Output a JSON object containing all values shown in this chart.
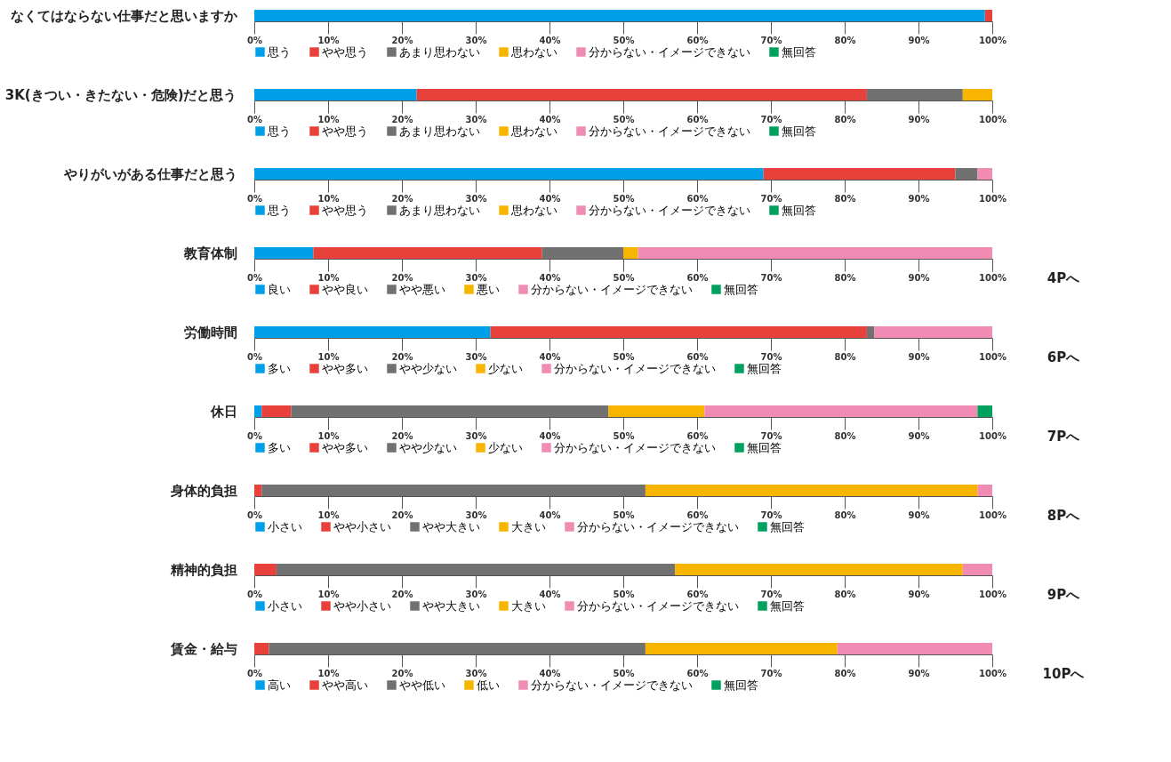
{
  "chart_data": [
    {
      "type": "bar",
      "orientation": "horizontal",
      "stacked": true,
      "legend": "bottom",
      "categories": [
        "なくてはならない仕事だと思いますか"
      ],
      "xlim": [
        0,
        100
      ],
      "xticks": [
        {
          "value": 0,
          "label": "0%"
        },
        {
          "value": 10,
          "label": "10%"
        },
        {
          "value": 20,
          "label": "20%"
        },
        {
          "value": 30,
          "label": "30%"
        },
        {
          "value": 40,
          "label": "40%"
        },
        {
          "value": 50,
          "label": "50%"
        },
        {
          "value": 60,
          "label": "60%"
        },
        {
          "value": 70,
          "label": "70%"
        },
        {
          "value": 80,
          "label": "80%"
        },
        {
          "value": 90,
          "label": "90%"
        },
        {
          "value": 100,
          "label": "100%"
        }
      ],
      "series": [
        {
          "name": "思う",
          "color": "#00a0e9",
          "values": [
            99
          ]
        },
        {
          "name": "やや思う",
          "color": "#e8413c",
          "values": [
            1
          ]
        },
        {
          "name": "あまり思わない",
          "color": "#727171",
          "values": [
            0
          ]
        },
        {
          "name": "思わない",
          "color": "#f8b500",
          "values": [
            0
          ]
        },
        {
          "name": "分からない・イメージできない",
          "color": "#f08cb4",
          "values": [
            0
          ]
        },
        {
          "name": "無回答",
          "color": "#00a15f",
          "values": [
            0
          ]
        }
      ]
    },
    {
      "type": "bar",
      "orientation": "horizontal",
      "stacked": true,
      "legend": "bottom",
      "categories": [
        "3K(きつい・きたない・危険)だと思う"
      ],
      "xlim": [
        0,
        100
      ],
      "xticks": [
        {
          "value": 0,
          "label": "0%"
        },
        {
          "value": 10,
          "label": "10%"
        },
        {
          "value": 20,
          "label": "20%"
        },
        {
          "value": 30,
          "label": "30%"
        },
        {
          "value": 40,
          "label": "40%"
        },
        {
          "value": 50,
          "label": "50%"
        },
        {
          "value": 60,
          "label": "60%"
        },
        {
          "value": 70,
          "label": "70%"
        },
        {
          "value": 80,
          "label": "80%"
        },
        {
          "value": 90,
          "label": "90%"
        },
        {
          "value": 100,
          "label": "100%"
        }
      ],
      "series": [
        {
          "name": "思う",
          "color": "#00a0e9",
          "values": [
            22
          ]
        },
        {
          "name": "やや思う",
          "color": "#e8413c",
          "values": [
            61
          ]
        },
        {
          "name": "あまり思わない",
          "color": "#727171",
          "values": [
            13
          ]
        },
        {
          "name": "思わない",
          "color": "#f8b500",
          "values": [
            4
          ]
        },
        {
          "name": "分からない・イメージできない",
          "color": "#f08cb4",
          "values": [
            0
          ]
        },
        {
          "name": "無回答",
          "color": "#00a15f",
          "values": [
            0
          ]
        }
      ]
    },
    {
      "type": "bar",
      "orientation": "horizontal",
      "stacked": true,
      "legend": "bottom",
      "categories": [
        "やりがいがある仕事だと思う"
      ],
      "xlim": [
        0,
        100
      ],
      "xticks": [
        {
          "value": 0,
          "label": "0%"
        },
        {
          "value": 10,
          "label": "10%"
        },
        {
          "value": 20,
          "label": "20%"
        },
        {
          "value": 30,
          "label": "30%"
        },
        {
          "value": 40,
          "label": "40%"
        },
        {
          "value": 50,
          "label": "50%"
        },
        {
          "value": 60,
          "label": "60%"
        },
        {
          "value": 70,
          "label": "70%"
        },
        {
          "value": 80,
          "label": "80%"
        },
        {
          "value": 90,
          "label": "90%"
        },
        {
          "value": 100,
          "label": "100%"
        }
      ],
      "series": [
        {
          "name": "思う",
          "color": "#00a0e9",
          "values": [
            69
          ]
        },
        {
          "name": "やや思う",
          "color": "#e8413c",
          "values": [
            26
          ]
        },
        {
          "name": "あまり思わない",
          "color": "#727171",
          "values": [
            3
          ]
        },
        {
          "name": "思わない",
          "color": "#f8b500",
          "values": [
            0
          ]
        },
        {
          "name": "分からない・イメージできない",
          "color": "#f08cb4",
          "values": [
            2
          ]
        },
        {
          "name": "無回答",
          "color": "#00a15f",
          "values": [
            0
          ]
        }
      ]
    },
    {
      "type": "bar",
      "orientation": "horizontal",
      "stacked": true,
      "legend": "bottom",
      "categories": [
        "教育体制"
      ],
      "annotations": [
        "4Pへ"
      ],
      "xlim": [
        0,
        100
      ],
      "xticks": [
        {
          "value": 0,
          "label": "0%"
        },
        {
          "value": 10,
          "label": "10%"
        },
        {
          "value": 20,
          "label": "20%"
        },
        {
          "value": 30,
          "label": "30%"
        },
        {
          "value": 40,
          "label": "40%"
        },
        {
          "value": 50,
          "label": "50%"
        },
        {
          "value": 60,
          "label": "60%"
        },
        {
          "value": 70,
          "label": "70%"
        },
        {
          "value": 80,
          "label": "80%"
        },
        {
          "value": 90,
          "label": "90%"
        },
        {
          "value": 100,
          "label": "100%"
        }
      ],
      "series": [
        {
          "name": "良い",
          "color": "#00a0e9",
          "values": [
            8
          ]
        },
        {
          "name": "やや良い",
          "color": "#e8413c",
          "values": [
            31
          ]
        },
        {
          "name": "やや悪い",
          "color": "#727171",
          "values": [
            11
          ]
        },
        {
          "name": "悪い",
          "color": "#f8b500",
          "values": [
            2
          ]
        },
        {
          "name": "分からない・イメージできない",
          "color": "#f08cb4",
          "values": [
            48
          ]
        },
        {
          "name": "無回答",
          "color": "#00a15f",
          "values": [
            0
          ]
        }
      ]
    },
    {
      "type": "bar",
      "orientation": "horizontal",
      "stacked": true,
      "legend": "bottom",
      "categories": [
        "労働時間"
      ],
      "annotations": [
        "6Pへ"
      ],
      "xlim": [
        0,
        100
      ],
      "xticks": [
        {
          "value": 0,
          "label": "0%"
        },
        {
          "value": 10,
          "label": "10%"
        },
        {
          "value": 20,
          "label": "20%"
        },
        {
          "value": 30,
          "label": "30%"
        },
        {
          "value": 40,
          "label": "40%"
        },
        {
          "value": 50,
          "label": "50%"
        },
        {
          "value": 60,
          "label": "60%"
        },
        {
          "value": 70,
          "label": "70%"
        },
        {
          "value": 80,
          "label": "80%"
        },
        {
          "value": 90,
          "label": "90%"
        },
        {
          "value": 100,
          "label": "100%"
        }
      ],
      "series": [
        {
          "name": "多い",
          "color": "#00a0e9",
          "values": [
            32
          ]
        },
        {
          "name": "やや多い",
          "color": "#e8413c",
          "values": [
            51
          ]
        },
        {
          "name": "やや少ない",
          "color": "#727171",
          "values": [
            1
          ]
        },
        {
          "name": "少ない",
          "color": "#f8b500",
          "values": [
            0
          ]
        },
        {
          "name": "分からない・イメージできない",
          "color": "#f08cb4",
          "values": [
            16
          ]
        },
        {
          "name": "無回答",
          "color": "#00a15f",
          "values": [
            0
          ]
        }
      ]
    },
    {
      "type": "bar",
      "orientation": "horizontal",
      "stacked": true,
      "legend": "bottom",
      "categories": [
        "休日"
      ],
      "annotations": [
        "7Pへ"
      ],
      "xlim": [
        0,
        100
      ],
      "xticks": [
        {
          "value": 0,
          "label": "0%"
        },
        {
          "value": 10,
          "label": "10%"
        },
        {
          "value": 20,
          "label": "20%"
        },
        {
          "value": 30,
          "label": "30%"
        },
        {
          "value": 40,
          "label": "40%"
        },
        {
          "value": 50,
          "label": "50%"
        },
        {
          "value": 60,
          "label": "60%"
        },
        {
          "value": 70,
          "label": "70%"
        },
        {
          "value": 80,
          "label": "80%"
        },
        {
          "value": 90,
          "label": "90%"
        },
        {
          "value": 100,
          "label": "100%"
        }
      ],
      "series": [
        {
          "name": "多い",
          "color": "#00a0e9",
          "values": [
            1
          ]
        },
        {
          "name": "やや多い",
          "color": "#e8413c",
          "values": [
            4
          ]
        },
        {
          "name": "やや少ない",
          "color": "#727171",
          "values": [
            43
          ]
        },
        {
          "name": "少ない",
          "color": "#f8b500",
          "values": [
            13
          ]
        },
        {
          "name": "分からない・イメージできない",
          "color": "#f08cb4",
          "values": [
            37
          ]
        },
        {
          "name": "無回答",
          "color": "#00a15f",
          "values": [
            2
          ]
        }
      ]
    },
    {
      "type": "bar",
      "orientation": "horizontal",
      "stacked": true,
      "legend": "bottom",
      "categories": [
        "身体的負担"
      ],
      "annotations": [
        "8Pへ"
      ],
      "xlim": [
        0,
        100
      ],
      "xticks": [
        {
          "value": 0,
          "label": "0%"
        },
        {
          "value": 10,
          "label": "10%"
        },
        {
          "value": 20,
          "label": "20%"
        },
        {
          "value": 30,
          "label": "30%"
        },
        {
          "value": 40,
          "label": "40%"
        },
        {
          "value": 50,
          "label": "50%"
        },
        {
          "value": 60,
          "label": "60%"
        },
        {
          "value": 70,
          "label": "70%"
        },
        {
          "value": 80,
          "label": "80%"
        },
        {
          "value": 90,
          "label": "90%"
        },
        {
          "value": 100,
          "label": "100%"
        }
      ],
      "series": [
        {
          "name": "小さい",
          "color": "#00a0e9",
          "values": [
            0
          ]
        },
        {
          "name": "やや小さい",
          "color": "#e8413c",
          "values": [
            1
          ]
        },
        {
          "name": "やや大きい",
          "color": "#727171",
          "values": [
            52
          ]
        },
        {
          "name": "大きい",
          "color": "#f8b500",
          "values": [
            45
          ]
        },
        {
          "name": "分からない・イメージできない",
          "color": "#f08cb4",
          "values": [
            2
          ]
        },
        {
          "name": "無回答",
          "color": "#00a15f",
          "values": [
            0
          ]
        }
      ]
    },
    {
      "type": "bar",
      "orientation": "horizontal",
      "stacked": true,
      "legend": "bottom",
      "categories": [
        "精神的負担"
      ],
      "annotations": [
        "9Pへ"
      ],
      "xlim": [
        0,
        100
      ],
      "xticks": [
        {
          "value": 0,
          "label": "0%"
        },
        {
          "value": 10,
          "label": "10%"
        },
        {
          "value": 20,
          "label": "20%"
        },
        {
          "value": 30,
          "label": "30%"
        },
        {
          "value": 40,
          "label": "40%"
        },
        {
          "value": 50,
          "label": "50%"
        },
        {
          "value": 60,
          "label": "60%"
        },
        {
          "value": 70,
          "label": "70%"
        },
        {
          "value": 80,
          "label": "80%"
        },
        {
          "value": 90,
          "label": "90%"
        },
        {
          "value": 100,
          "label": "100%"
        }
      ],
      "series": [
        {
          "name": "小さい",
          "color": "#00a0e9",
          "values": [
            0
          ]
        },
        {
          "name": "やや小さい",
          "color": "#e8413c",
          "values": [
            3
          ]
        },
        {
          "name": "やや大きい",
          "color": "#727171",
          "values": [
            54
          ]
        },
        {
          "name": "大きい",
          "color": "#f8b500",
          "values": [
            39
          ]
        },
        {
          "name": "分からない・イメージできない",
          "color": "#f08cb4",
          "values": [
            4
          ]
        },
        {
          "name": "無回答",
          "color": "#00a15f",
          "values": [
            0
          ]
        }
      ]
    },
    {
      "type": "bar",
      "orientation": "horizontal",
      "stacked": true,
      "legend": "bottom",
      "categories": [
        "賃金・給与"
      ],
      "annotations": [
        "10Pへ"
      ],
      "xlim": [
        0,
        100
      ],
      "xticks": [
        {
          "value": 0,
          "label": "0%"
        },
        {
          "value": 10,
          "label": "10%"
        },
        {
          "value": 20,
          "label": "20%"
        },
        {
          "value": 30,
          "label": "30%"
        },
        {
          "value": 40,
          "label": "40%"
        },
        {
          "value": 50,
          "label": "50%"
        },
        {
          "value": 60,
          "label": "60%"
        },
        {
          "value": 70,
          "label": "70%"
        },
        {
          "value": 80,
          "label": "80%"
        },
        {
          "value": 90,
          "label": "90%"
        },
        {
          "value": 100,
          "label": "100%"
        }
      ],
      "series": [
        {
          "name": "高い",
          "color": "#00a0e9",
          "values": [
            0
          ]
        },
        {
          "name": "やや高い",
          "color": "#e8413c",
          "values": [
            2
          ]
        },
        {
          "name": "やや低い",
          "color": "#727171",
          "values": [
            51
          ]
        },
        {
          "name": "低い",
          "color": "#f8b500",
          "values": [
            26
          ]
        },
        {
          "name": "分からない・イメージできない",
          "color": "#f08cb4",
          "values": [
            21
          ]
        },
        {
          "name": "無回答",
          "color": "#00a15f",
          "values": [
            0
          ]
        }
      ]
    }
  ]
}
